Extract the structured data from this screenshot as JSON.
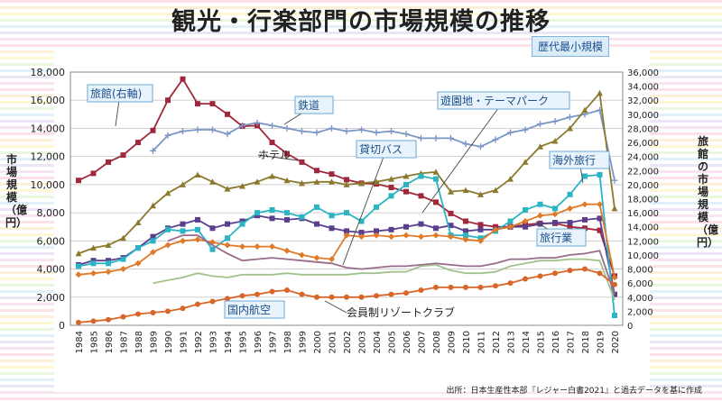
{
  "title": "観光・行楽部門の市場規模の推移",
  "badge": "歴代最小規模",
  "source": "出所：日本生産性本部『レジャー白書2021』と過去データを基に作成",
  "left_axis_label": "市場規模（億円）",
  "right_axis_label": "旅館の市場規模（億円）",
  "chart_data": {
    "type": "line",
    "title": "観光・行楽部門の市場規模の推移",
    "ylabel": "市場規模（億円）",
    "y2label": "旅館の市場規模（億円）",
    "ylim": [
      0,
      18000
    ],
    "y2lim": [
      0,
      36000
    ],
    "yticks": [
      "0",
      "2,000",
      "4,000",
      "6,000",
      "8,000",
      "10,000",
      "12,000",
      "14,000",
      "16,000",
      "18,000"
    ],
    "y2ticks": [
      "0",
      "2,000",
      "4,000",
      "6,000",
      "8,000",
      "10,000",
      "12,000",
      "14,000",
      "16,000",
      "18,000",
      "20,000",
      "22,000",
      "24,000",
      "26,000",
      "28,000",
      "30,000",
      "32,000",
      "34,000",
      "36,000"
    ],
    "grid": true,
    "x": [
      1984,
      1985,
      1986,
      1987,
      1988,
      1989,
      1990,
      1991,
      1992,
      1993,
      1994,
      1995,
      1996,
      1997,
      1998,
      1999,
      2000,
      2001,
      2002,
      2003,
      2004,
      2005,
      2006,
      2007,
      2008,
      2009,
      2010,
      2011,
      2012,
      2013,
      2014,
      2015,
      2016,
      2017,
      2018,
      2019,
      2020
    ],
    "series": [
      {
        "name": "旅館(右軸)",
        "axis": "right",
        "color": "#a0283c",
        "marker": "square",
        "values": [
          20600,
          21600,
          23200,
          24200,
          26000,
          27700,
          32000,
          35000,
          31500,
          31500,
          30000,
          28300,
          28400,
          26000,
          24400,
          23200,
          22000,
          21500,
          20700,
          20200,
          20100,
          19600,
          19000,
          18400,
          17500,
          15900,
          14800,
          14300,
          14000,
          14000,
          14300,
          14500,
          14500,
          14000,
          13800,
          13500,
          7000
        ]
      },
      {
        "name": "鉄道",
        "axis": "left",
        "color": "#7b96c6",
        "marker": "plus",
        "values": [
          null,
          null,
          null,
          null,
          null,
          12400,
          13500,
          13800,
          13900,
          13900,
          13600,
          14200,
          14400,
          14200,
          14000,
          13800,
          13700,
          14000,
          13800,
          13900,
          13700,
          13800,
          13600,
          13300,
          13300,
          13300,
          12900,
          12700,
          13200,
          13700,
          13900,
          14300,
          14500,
          14800,
          15000,
          15300,
          10300
        ]
      },
      {
        "name": "ホテル",
        "axis": "left",
        "color": "#8b7a2e",
        "marker": "triangle",
        "values": [
          5100,
          5500,
          5700,
          6200,
          7300,
          8500,
          9400,
          10000,
          10700,
          10200,
          9700,
          9900,
          10200,
          10600,
          10300,
          10100,
          10200,
          10200,
          10000,
          10100,
          10200,
          10400,
          10600,
          10800,
          10900,
          9500,
          9600,
          9300,
          9600,
          10400,
          11600,
          12700,
          13100,
          14000,
          15300,
          16500,
          8300
        ]
      },
      {
        "name": "遊園地・テーマパーク",
        "axis": "left",
        "color": "#5b3f8c",
        "marker": "square",
        "values": [
          4300,
          4600,
          4600,
          4800,
          5500,
          6300,
          6900,
          7200,
          7500,
          6900,
          7200,
          7400,
          7800,
          7600,
          7500,
          7600,
          7200,
          6900,
          6700,
          6600,
          6700,
          6800,
          7000,
          7200,
          6900,
          7100,
          6700,
          6800,
          6800,
          7000,
          7000,
          7200,
          7300,
          7300,
          7500,
          7600,
          2200
        ]
      },
      {
        "name": "海外旅行",
        "axis": "left",
        "color": "#2bb4c4",
        "marker": "square",
        "values": [
          4200,
          4400,
          4400,
          4700,
          5500,
          6000,
          6800,
          6700,
          6800,
          5400,
          6200,
          7200,
          8000,
          8200,
          8000,
          7700,
          8400,
          7800,
          8000,
          7400,
          8400,
          9200,
          10000,
          10600,
          10400,
          6400,
          6400,
          6200,
          6700,
          7400,
          8200,
          8600,
          8300,
          9300,
          10600,
          10700,
          700
        ]
      },
      {
        "name": "旅行業",
        "axis": "left",
        "color": "#e07a28",
        "marker": "diamond",
        "values": [
          3600,
          3700,
          3800,
          4000,
          4400,
          5200,
          5700,
          6000,
          6100,
          5900,
          5700,
          5600,
          5600,
          5600,
          5300,
          5000,
          4800,
          4700,
          6400,
          6300,
          6400,
          6300,
          6400,
          6300,
          6400,
          6300,
          6100,
          6000,
          6800,
          7000,
          7400,
          7800,
          7900,
          8300,
          8600,
          8600,
          3400
        ]
      },
      {
        "name": "貸切バス",
        "axis": "left",
        "color": "#9b6b8c",
        "marker": "none",
        "values": [
          null,
          null,
          null,
          null,
          null,
          null,
          6000,
          6400,
          6400,
          5700,
          5100,
          4600,
          4700,
          4800,
          4700,
          4600,
          4500,
          4400,
          4100,
          4000,
          4100,
          4200,
          4200,
          4300,
          4400,
          4300,
          4200,
          4200,
          4400,
          4700,
          4700,
          4800,
          4800,
          5000,
          5100,
          5300,
          2200
        ]
      },
      {
        "name": "国内航空",
        "axis": "left",
        "color": "#a2c28c",
        "marker": "none",
        "values": [
          null,
          null,
          null,
          null,
          null,
          3000,
          3200,
          3400,
          3700,
          3500,
          3400,
          3600,
          3600,
          3600,
          3700,
          3600,
          3600,
          3600,
          3600,
          3700,
          3700,
          3800,
          3800,
          4200,
          4300,
          3900,
          3700,
          3700,
          3800,
          4200,
          4400,
          4600,
          4600,
          4700,
          4700,
          4600,
          1800
        ]
      },
      {
        "name": "会員制リゾートクラブ",
        "axis": "left",
        "color": "#d8662a",
        "marker": "circle",
        "values": [
          200,
          300,
          400,
          600,
          800,
          900,
          1000,
          1200,
          1500,
          1700,
          1900,
          2100,
          2200,
          2400,
          2500,
          2200,
          2000,
          2000,
          2000,
          2000,
          2100,
          2200,
          2300,
          2500,
          2700,
          2700,
          2700,
          2700,
          2800,
          3000,
          3300,
          3500,
          3700,
          3900,
          4000,
          3700,
          2900
        ]
      }
    ],
    "labels": [
      {
        "series": "旅館(右軸)",
        "text": "旅館(右軸)",
        "style": "box"
      },
      {
        "series": "鉄道",
        "text": "鉄道",
        "style": "box"
      },
      {
        "series": "ホテル",
        "text": "ホテル",
        "style": "plain"
      },
      {
        "series": "遊園地・テーマパーク",
        "text": "遊園地・テーマパーク",
        "style": "box"
      },
      {
        "series": "海外旅行",
        "text": "海外旅行",
        "style": "box"
      },
      {
        "series": "旅行業",
        "text": "旅行業",
        "style": "box"
      },
      {
        "series": "貸切バス",
        "text": "貸切バス",
        "style": "box"
      },
      {
        "series": "国内航空",
        "text": "国内航空",
        "style": "box"
      },
      {
        "series": "会員制リゾートクラブ",
        "text": "会員制リゾートクラブ",
        "style": "plain"
      }
    ]
  }
}
